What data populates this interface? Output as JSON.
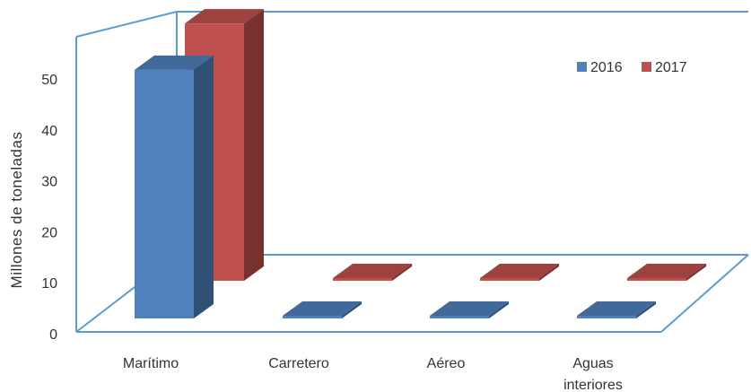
{
  "chart_data": {
    "type": "bar",
    "title": "",
    "xlabel": "",
    "ylabel": "Millones de toneladas",
    "ylim": [
      0,
      50
    ],
    "yticks": [
      0,
      10,
      20,
      30,
      40,
      50
    ],
    "categories": [
      {
        "lines": [
          "Marítimo"
        ]
      },
      {
        "lines": [
          "Carretero"
        ]
      },
      {
        "lines": [
          "Aéreo"
        ]
      },
      {
        "lines": [
          "Aguas",
          "interiores"
        ]
      }
    ],
    "series": [
      {
        "name": "2016",
        "values": [
          48.8,
          0.4,
          0.1,
          0.1
        ],
        "color": "#4F81BD"
      },
      {
        "name": "2017",
        "values": [
          50.5,
          0.4,
          0.1,
          0.1
        ],
        "color": "#C0504D"
      }
    ],
    "legend_position": "top-right",
    "frame_color": "#5B9BD5"
  }
}
